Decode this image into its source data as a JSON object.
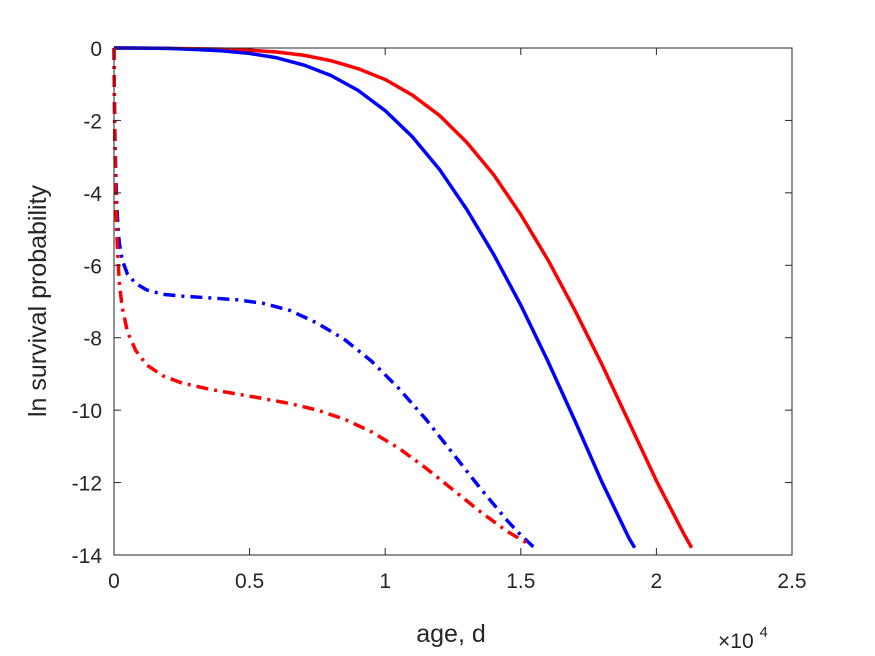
{
  "chart_data": {
    "type": "line",
    "title": "",
    "xlabel": "age, d",
    "ylabel": "ln survival probability",
    "x_exponent_label": {
      "base": "×10",
      "power": "4"
    },
    "xlim": [
      0,
      2.5
    ],
    "ylim": [
      -14,
      0
    ],
    "x_scale_multiplier": 10000,
    "xticks": [
      0,
      0.5,
      1,
      1.5,
      2,
      2.5
    ],
    "xtick_labels": [
      "0",
      "0.5",
      "1",
      "1.5",
      "2",
      "2.5"
    ],
    "yticks": [
      0,
      -2,
      -4,
      -6,
      -8,
      -10,
      -12,
      -14
    ],
    "ytick_labels": [
      "0",
      "-2",
      "-4",
      "-6",
      "-8",
      "-10",
      "-12",
      "-14"
    ],
    "grid": false,
    "legend": "none",
    "series": [
      {
        "color": "#ff0000",
        "style": "solid",
        "x": [
          0,
          0.05,
          0.2,
          0.4,
          0.5,
          0.6,
          0.7,
          0.8,
          0.9,
          1.0,
          1.1,
          1.2,
          1.3,
          1.4,
          1.5,
          1.6,
          1.7,
          1.8,
          1.9,
          2.0,
          2.1,
          2.13
        ],
        "y": [
          0,
          0,
          -0.01,
          -0.03,
          -0.06,
          -0.11,
          -0.2,
          -0.35,
          -0.57,
          -0.87,
          -1.3,
          -1.86,
          -2.6,
          -3.5,
          -4.6,
          -5.85,
          -7.25,
          -8.75,
          -10.35,
          -11.95,
          -13.4,
          -13.8
        ]
      },
      {
        "color": "#0000ff",
        "style": "solid",
        "x": [
          0,
          0.05,
          0.2,
          0.3,
          0.4,
          0.5,
          0.6,
          0.7,
          0.8,
          0.9,
          1.0,
          1.1,
          1.2,
          1.3,
          1.4,
          1.5,
          1.6,
          1.7,
          1.8,
          1.9,
          1.92
        ],
        "y": [
          0,
          0,
          -0.01,
          -0.04,
          -0.08,
          -0.15,
          -0.27,
          -0.47,
          -0.76,
          -1.17,
          -1.73,
          -2.45,
          -3.35,
          -4.45,
          -5.7,
          -7.1,
          -8.65,
          -10.3,
          -12.0,
          -13.55,
          -13.8
        ]
      },
      {
        "color": "#0000ff",
        "style": "dashdot",
        "x": [
          0,
          0.001,
          0.003,
          0.006,
          0.01,
          0.015,
          0.02,
          0.03,
          0.05,
          0.08,
          0.12,
          0.18,
          0.25,
          0.35,
          0.45,
          0.55,
          0.65,
          0.75,
          0.85,
          0.95,
          1.05,
          1.15,
          1.25,
          1.35,
          1.45,
          1.5,
          1.55
        ],
        "y": [
          0,
          -1.0,
          -2.2,
          -3.3,
          -4.3,
          -5.0,
          -5.4,
          -5.85,
          -6.25,
          -6.5,
          -6.68,
          -6.8,
          -6.85,
          -6.9,
          -6.95,
          -7.05,
          -7.25,
          -7.6,
          -8.05,
          -8.65,
          -9.4,
          -10.25,
          -11.2,
          -12.15,
          -13.05,
          -13.45,
          -13.8
        ]
      },
      {
        "color": "#ff0000",
        "style": "dashdot",
        "x": [
          0,
          0.001,
          0.003,
          0.006,
          0.01,
          0.015,
          0.02,
          0.03,
          0.05,
          0.08,
          0.12,
          0.18,
          0.25,
          0.35,
          0.45,
          0.55,
          0.65,
          0.75,
          0.85,
          0.95,
          1.05,
          1.15,
          1.25,
          1.35,
          1.45,
          1.53
        ],
        "y": [
          0,
          -1.2,
          -2.6,
          -3.9,
          -5.1,
          -5.9,
          -6.5,
          -7.15,
          -7.85,
          -8.35,
          -8.75,
          -9.05,
          -9.25,
          -9.42,
          -9.55,
          -9.68,
          -9.82,
          -10.0,
          -10.25,
          -10.6,
          -11.05,
          -11.6,
          -12.2,
          -12.8,
          -13.35,
          -13.7
        ]
      }
    ]
  }
}
